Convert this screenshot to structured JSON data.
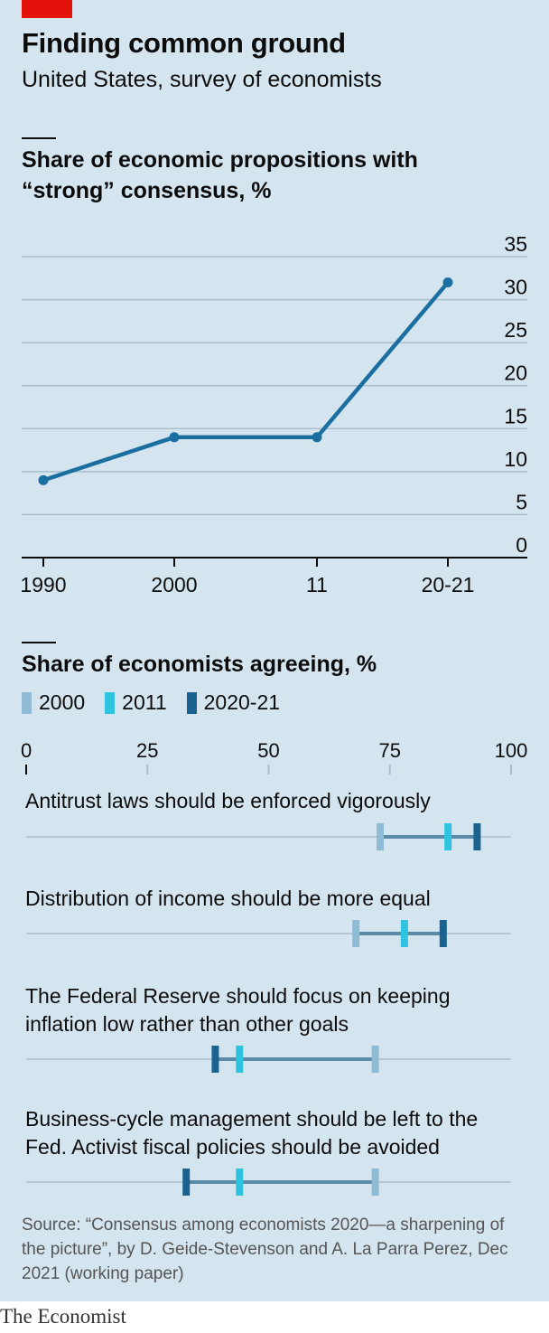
{
  "header": {
    "title": "Finding common ground",
    "subtitle": "United States, survey of economists"
  },
  "chart_data": [
    {
      "type": "line",
      "title": "Share of economic propositions with “strong” consensus, %",
      "x": [
        "1990",
        "2000",
        "11",
        "20-21"
      ],
      "series": [
        {
          "values": [
            9,
            14,
            14,
            32
          ],
          "color": "#1a6fa0"
        }
      ],
      "ylim": [
        0,
        35
      ],
      "yticks": [
        "0",
        "5",
        "10",
        "15",
        "20",
        "25",
        "30",
        "35"
      ],
      "grid": true,
      "axis_position": "right"
    },
    {
      "type": "dot-range",
      "title": "Share of economists agreeing, %",
      "xlim": [
        0,
        100
      ],
      "xticks": [
        "0",
        "25",
        "50",
        "75",
        "100"
      ],
      "legend": [
        {
          "name": "2000",
          "color": "#8fbcd4"
        },
        {
          "name": "2011",
          "color": "#2ec4e0"
        },
        {
          "name": "2020-21",
          "color": "#1a6290"
        }
      ],
      "legend_placement": "top-left",
      "rows": [
        {
          "label": "Antitrust laws should be enforced vigorously",
          "values": [
            73,
            87,
            93
          ]
        },
        {
          "label": "Distribution of income should be more equal",
          "values": [
            68,
            78,
            86
          ]
        },
        {
          "label": "The Federal Reserve should focus on keeping inflation low rather than other goals",
          "values": [
            72,
            44,
            39
          ]
        },
        {
          "label": "Business-cycle management should be left to the Fed. Activist fiscal policies should be avoided",
          "values": [
            72,
            44,
            33
          ]
        }
      ]
    }
  ],
  "footer": {
    "source": "Source: “Consensus among economists 2020—a sharpening of the picture”, by D. Geide-Stevenson and A. La Parra Perez, Dec 2021 (working paper)",
    "brand": "The Economist"
  }
}
